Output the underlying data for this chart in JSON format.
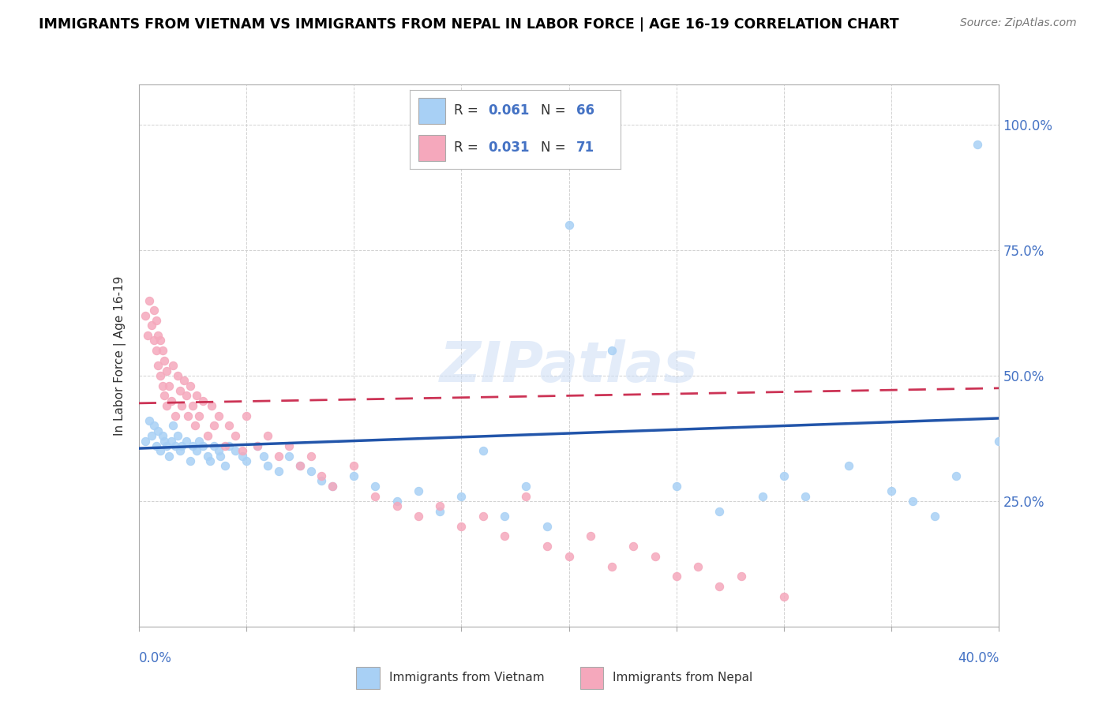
{
  "title": "IMMIGRANTS FROM VIETNAM VS IMMIGRANTS FROM NEPAL IN LABOR FORCE | AGE 16-19 CORRELATION CHART",
  "source": "Source: ZipAtlas.com",
  "ylabel": "In Labor Force | Age 16-19",
  "x_range": [
    0.0,
    0.4
  ],
  "y_range": [
    0.0,
    1.08
  ],
  "vietnam_R": 0.061,
  "vietnam_N": 66,
  "nepal_R": 0.031,
  "nepal_N": 71,
  "vietnam_color": "#a8d0f5",
  "nepal_color": "#f5a8bc",
  "vietnam_line_color": "#2255aa",
  "nepal_line_color": "#cc3355",
  "vietnam_line_style": "solid",
  "nepal_line_style": "dashed",
  "viet_line_x0": 0.0,
  "viet_line_y0": 0.355,
  "viet_line_x1": 0.4,
  "viet_line_y1": 0.415,
  "nepal_line_x0": 0.0,
  "nepal_line_y0": 0.445,
  "nepal_line_x1": 0.4,
  "nepal_line_y1": 0.475,
  "vietnam_scatter_x": [
    0.003,
    0.005,
    0.006,
    0.007,
    0.008,
    0.009,
    0.01,
    0.011,
    0.012,
    0.013,
    0.014,
    0.015,
    0.016,
    0.017,
    0.018,
    0.019,
    0.02,
    0.022,
    0.024,
    0.025,
    0.027,
    0.028,
    0.03,
    0.032,
    0.033,
    0.035,
    0.037,
    0.038,
    0.04,
    0.042,
    0.045,
    0.048,
    0.05,
    0.055,
    0.058,
    0.06,
    0.065,
    0.07,
    0.075,
    0.08,
    0.085,
    0.09,
    0.1,
    0.11,
    0.12,
    0.13,
    0.14,
    0.15,
    0.16,
    0.17,
    0.18,
    0.19,
    0.2,
    0.22,
    0.25,
    0.27,
    0.29,
    0.3,
    0.31,
    0.33,
    0.35,
    0.36,
    0.37,
    0.38,
    0.39,
    0.4
  ],
  "vietnam_scatter_y": [
    0.37,
    0.41,
    0.38,
    0.4,
    0.36,
    0.39,
    0.35,
    0.38,
    0.37,
    0.36,
    0.34,
    0.37,
    0.4,
    0.36,
    0.38,
    0.35,
    0.36,
    0.37,
    0.33,
    0.36,
    0.35,
    0.37,
    0.36,
    0.34,
    0.33,
    0.36,
    0.35,
    0.34,
    0.32,
    0.36,
    0.35,
    0.34,
    0.33,
    0.36,
    0.34,
    0.32,
    0.31,
    0.34,
    0.32,
    0.31,
    0.29,
    0.28,
    0.3,
    0.28,
    0.25,
    0.27,
    0.23,
    0.26,
    0.35,
    0.22,
    0.28,
    0.2,
    0.8,
    0.55,
    0.28,
    0.23,
    0.26,
    0.3,
    0.26,
    0.32,
    0.27,
    0.25,
    0.22,
    0.3,
    0.96,
    0.37
  ],
  "nepal_scatter_x": [
    0.003,
    0.004,
    0.005,
    0.006,
    0.007,
    0.007,
    0.008,
    0.008,
    0.009,
    0.009,
    0.01,
    0.01,
    0.011,
    0.011,
    0.012,
    0.012,
    0.013,
    0.013,
    0.014,
    0.015,
    0.016,
    0.017,
    0.018,
    0.019,
    0.02,
    0.021,
    0.022,
    0.023,
    0.024,
    0.025,
    0.026,
    0.027,
    0.028,
    0.03,
    0.032,
    0.034,
    0.035,
    0.037,
    0.04,
    0.042,
    0.045,
    0.048,
    0.05,
    0.055,
    0.06,
    0.065,
    0.07,
    0.075,
    0.08,
    0.085,
    0.09,
    0.1,
    0.11,
    0.12,
    0.13,
    0.14,
    0.15,
    0.16,
    0.17,
    0.18,
    0.19,
    0.2,
    0.21,
    0.22,
    0.23,
    0.24,
    0.25,
    0.26,
    0.27,
    0.28,
    0.3
  ],
  "nepal_scatter_y": [
    0.62,
    0.58,
    0.65,
    0.6,
    0.57,
    0.63,
    0.55,
    0.61,
    0.52,
    0.58,
    0.5,
    0.57,
    0.48,
    0.55,
    0.46,
    0.53,
    0.44,
    0.51,
    0.48,
    0.45,
    0.52,
    0.42,
    0.5,
    0.47,
    0.44,
    0.49,
    0.46,
    0.42,
    0.48,
    0.44,
    0.4,
    0.46,
    0.42,
    0.45,
    0.38,
    0.44,
    0.4,
    0.42,
    0.36,
    0.4,
    0.38,
    0.35,
    0.42,
    0.36,
    0.38,
    0.34,
    0.36,
    0.32,
    0.34,
    0.3,
    0.28,
    0.32,
    0.26,
    0.24,
    0.22,
    0.24,
    0.2,
    0.22,
    0.18,
    0.26,
    0.16,
    0.14,
    0.18,
    0.12,
    0.16,
    0.14,
    0.1,
    0.12,
    0.08,
    0.1,
    0.06
  ]
}
